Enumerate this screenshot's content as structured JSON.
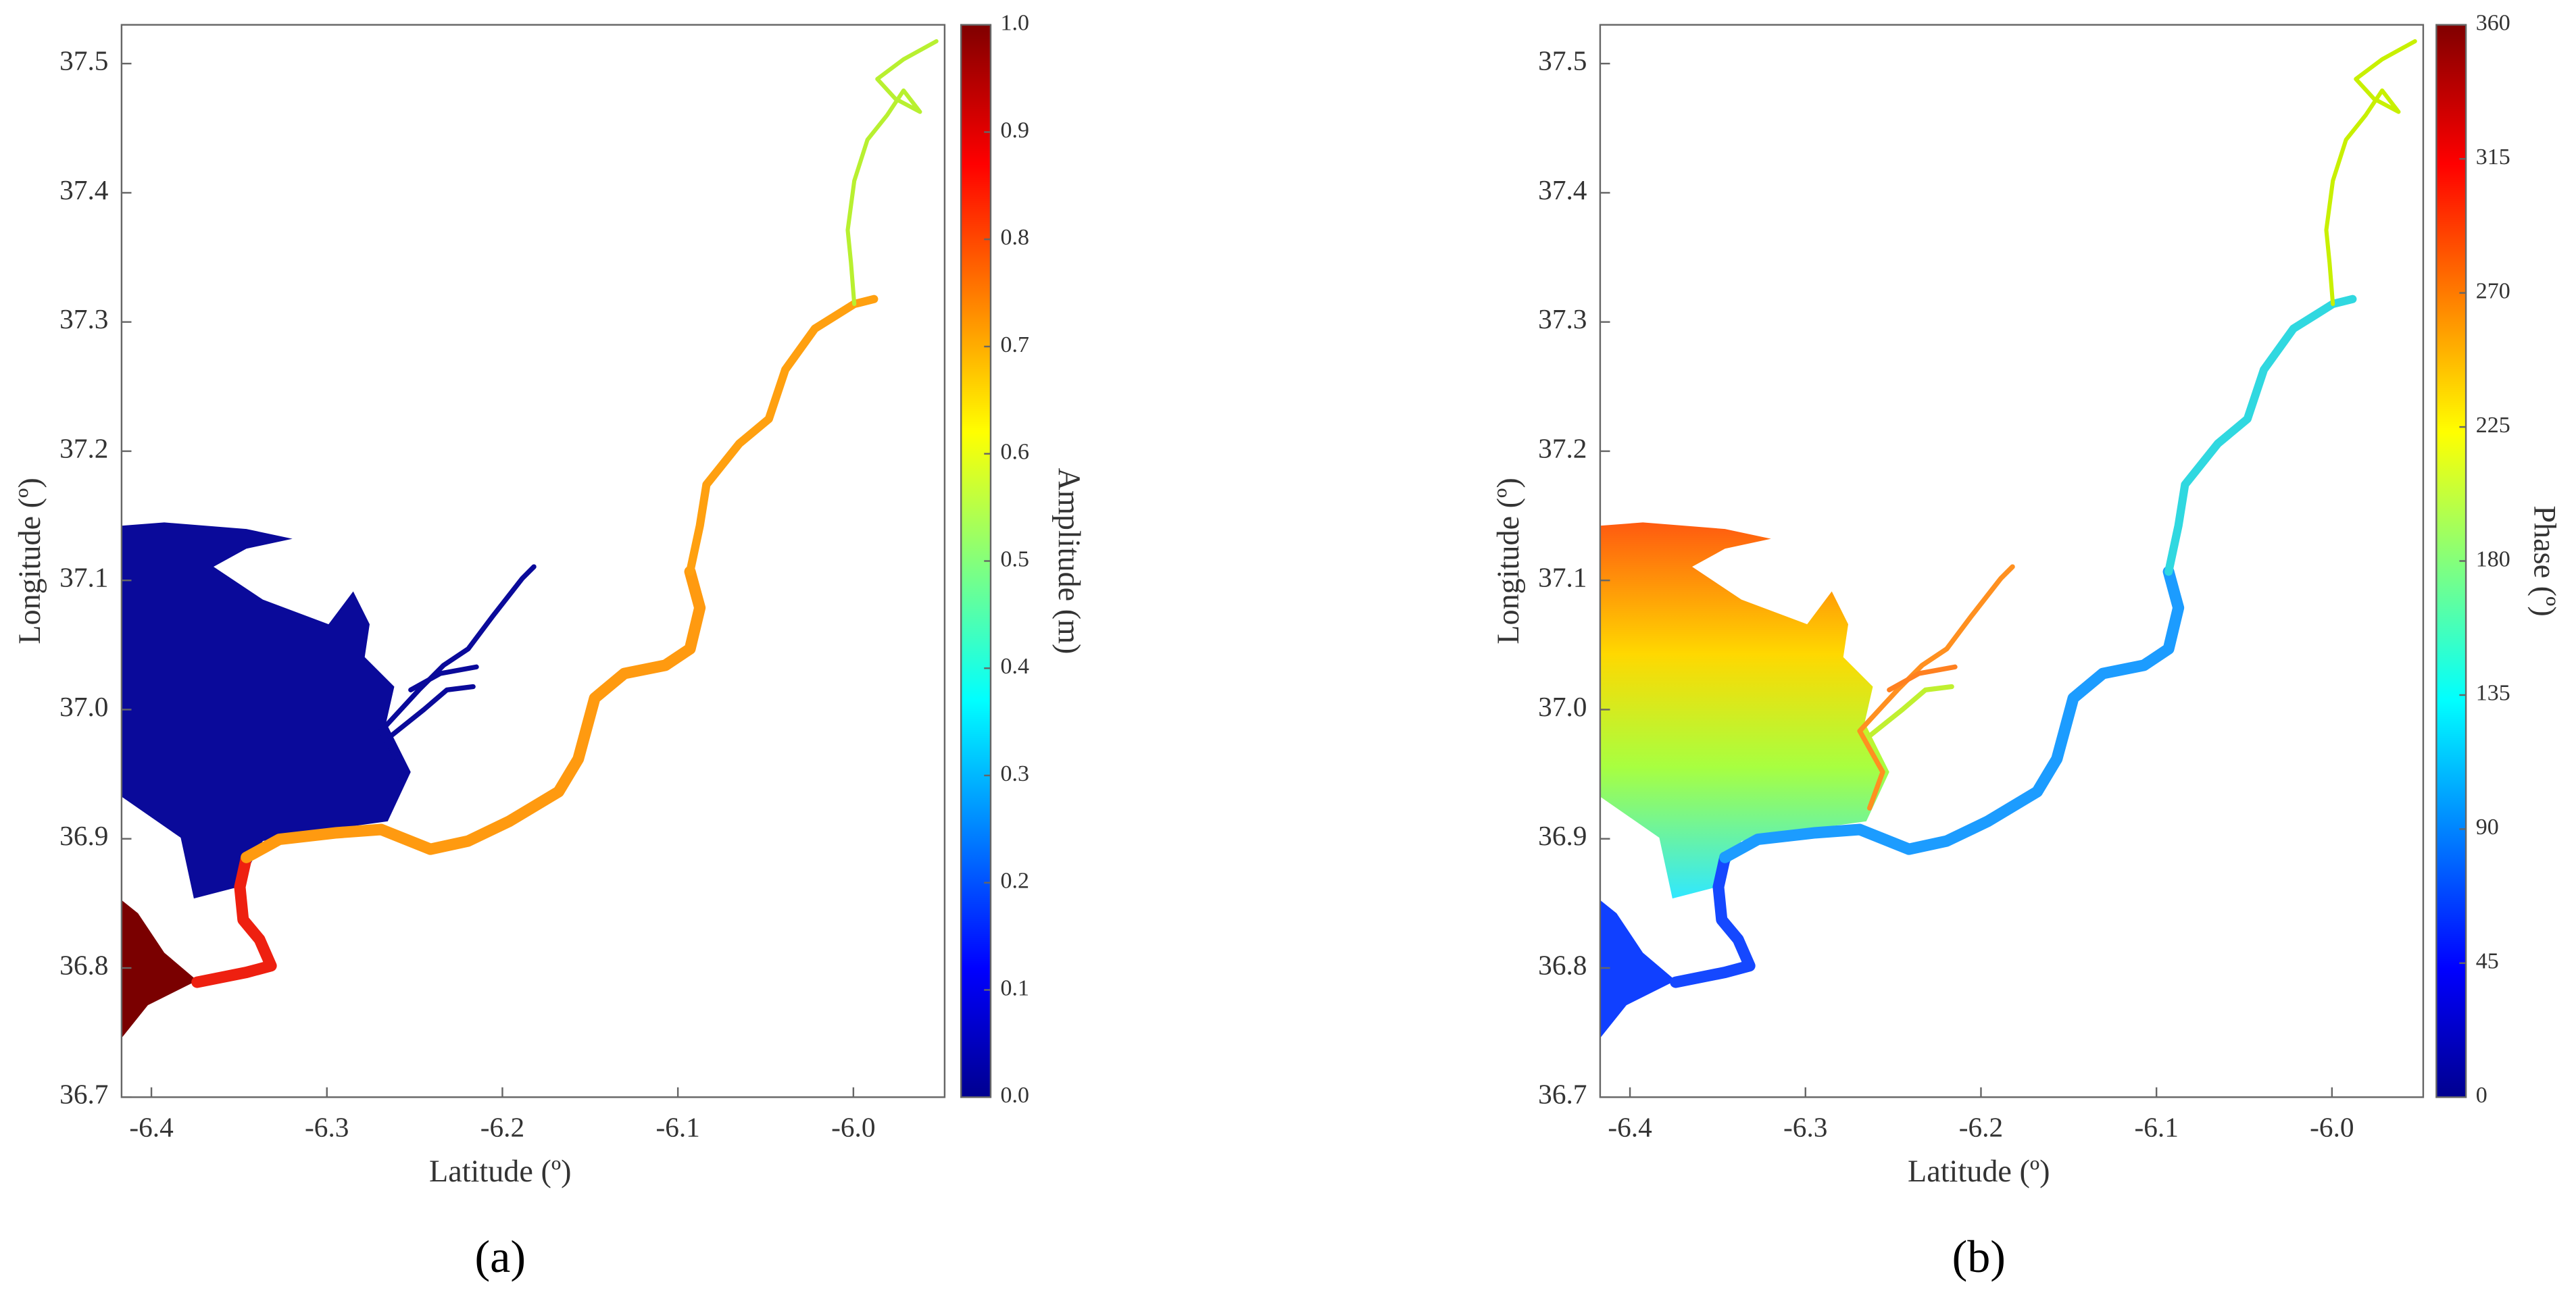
{
  "chart_data": [
    {
      "type": "map",
      "panel_label": "(a)",
      "xlabel": "Latitude (º)",
      "ylabel": "Longitude (º)",
      "xlim": [
        -6.417,
        -5.948
      ],
      "ylim": [
        36.7,
        37.53
      ],
      "xticks": [
        -6.4,
        -6.3,
        -6.2,
        -6.1,
        {
          "value": -6.0,
          "label": "-6.0"
        }
      ],
      "yticks": [
        {
          "value": 36.7,
          "label": "36.7"
        },
        36.8,
        36.9,
        {
          "value": 37.0,
          "label": "37.0"
        },
        37.1,
        37.2,
        37.3,
        37.4,
        37.5
      ],
      "colorbar": {
        "label": "Amplitude (m)",
        "colormap": "jet",
        "lim": [
          0,
          1
        ],
        "ticks": [
          {
            "value": 0,
            "label": "0.0"
          },
          0.1,
          0.2,
          0.3,
          0.4,
          0.5,
          0.6,
          0.7,
          0.8,
          0.9,
          {
            "value": 1,
            "label": "1.0"
          }
        ]
      }
    },
    {
      "type": "map",
      "panel_label": "(b)",
      "xlabel": "Latitude (º)",
      "ylabel": "Longitude (º)",
      "xlim": [
        -6.417,
        -5.948
      ],
      "ylim": [
        36.7,
        37.53
      ],
      "xticks": [
        -6.4,
        -6.3,
        -6.2,
        -6.1,
        {
          "value": -6.0,
          "label": "-6.0"
        }
      ],
      "yticks": [
        {
          "value": 36.7,
          "label": "36.7"
        },
        36.8,
        36.9,
        {
          "value": 37.0,
          "label": "37.0"
        },
        37.1,
        37.2,
        37.3,
        37.4,
        37.5
      ],
      "colorbar": {
        "label": "Phase (º)",
        "colormap": "jet",
        "lim": [
          0,
          360
        ],
        "ticks": [
          0,
          45,
          90,
          135,
          180,
          225,
          270,
          315,
          360
        ]
      }
    }
  ]
}
